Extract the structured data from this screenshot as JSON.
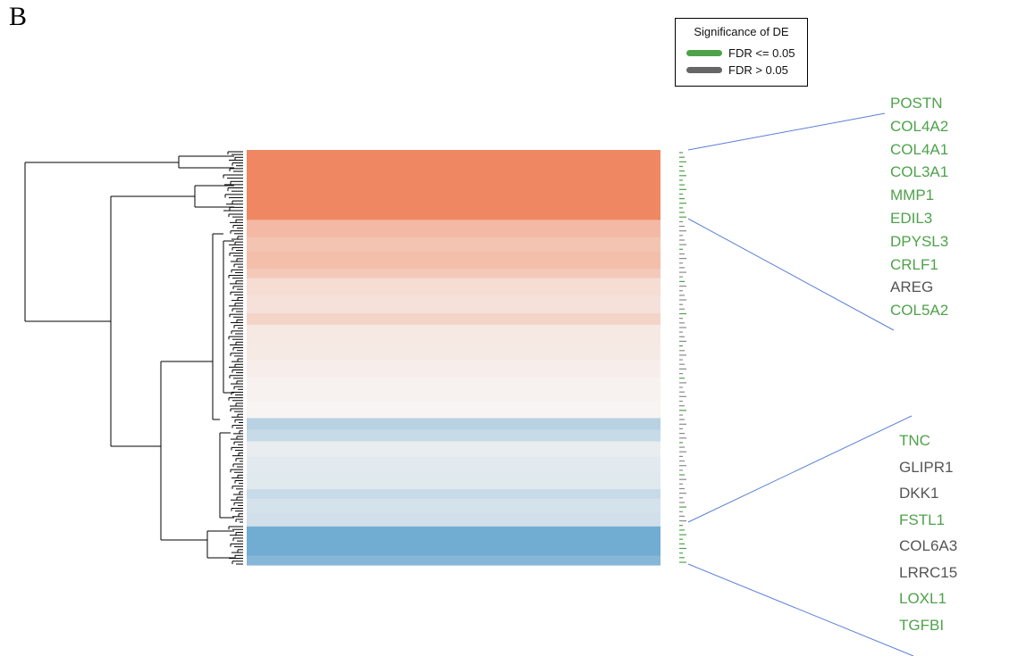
{
  "panel_label": "B",
  "legend": {
    "title": "Significance of DE",
    "items": [
      {
        "label": "FDR <= 0.05",
        "color": "#4ea24a"
      },
      {
        "label": "FDR > 0.05",
        "color": "#666666"
      }
    ]
  },
  "colors": {
    "significant": "#4ea24a",
    "not_significant": "#555555",
    "connector": "#5b7fd6",
    "dendrogram": "#000000"
  },
  "chart_data": {
    "type": "heatmap",
    "title": "",
    "row_bands": [
      {
        "value": 1.0,
        "weight": 3
      },
      {
        "value": 1.0,
        "weight": 3
      },
      {
        "value": 0.55,
        "weight": 1.5
      },
      {
        "value": 0.45,
        "weight": 1.2
      },
      {
        "value": 0.5,
        "weight": 1.5
      },
      {
        "value": 0.4,
        "weight": 0.8
      },
      {
        "value": 0.22,
        "weight": 1.5
      },
      {
        "value": 0.18,
        "weight": 1.5
      },
      {
        "value": 0.3,
        "weight": 1
      },
      {
        "value": 0.12,
        "weight": 1.5
      },
      {
        "value": 0.1,
        "weight": 1.5
      },
      {
        "value": 0.06,
        "weight": 1.5
      },
      {
        "value": 0.03,
        "weight": 2
      },
      {
        "value": 0.01,
        "weight": 1.5
      },
      {
        "value": -0.45,
        "weight": 1
      },
      {
        "value": -0.35,
        "weight": 1
      },
      {
        "value": -0.1,
        "weight": 1.3
      },
      {
        "value": -0.14,
        "weight": 1.4
      },
      {
        "value": -0.16,
        "weight": 1.4
      },
      {
        "value": -0.35,
        "weight": 0.8
      },
      {
        "value": -0.25,
        "weight": 1.2
      },
      {
        "value": -0.28,
        "weight": 1.2
      },
      {
        "value": -0.95,
        "weight": 2.5
      },
      {
        "value": -0.8,
        "weight": 0.8
      }
    ],
    "color_scale": {
      "high": "#ef8862",
      "mid": "#f7f5f4",
      "low": "#6aa8d0"
    },
    "upper_genes": [
      {
        "name": "POSTN",
        "significant": true
      },
      {
        "name": "COL4A2",
        "significant": true
      },
      {
        "name": "COL4A1",
        "significant": true
      },
      {
        "name": "COL3A1",
        "significant": true
      },
      {
        "name": "MMP1",
        "significant": true
      },
      {
        "name": "EDIL3",
        "significant": true
      },
      {
        "name": "DPYSL3",
        "significant": true
      },
      {
        "name": "CRLF1",
        "significant": true
      },
      {
        "name": "AREG",
        "significant": false
      },
      {
        "name": "COL5A2",
        "significant": true
      }
    ],
    "lower_genes": [
      {
        "name": "TNC",
        "significant": true
      },
      {
        "name": "GLIPR1",
        "significant": false
      },
      {
        "name": "DKK1",
        "significant": false
      },
      {
        "name": "FSTL1",
        "significant": true
      },
      {
        "name": "COL6A3",
        "significant": false
      },
      {
        "name": "LRRC15",
        "significant": false
      },
      {
        "name": "LOXL1",
        "significant": true
      },
      {
        "name": "TGFBI",
        "significant": true
      }
    ]
  }
}
